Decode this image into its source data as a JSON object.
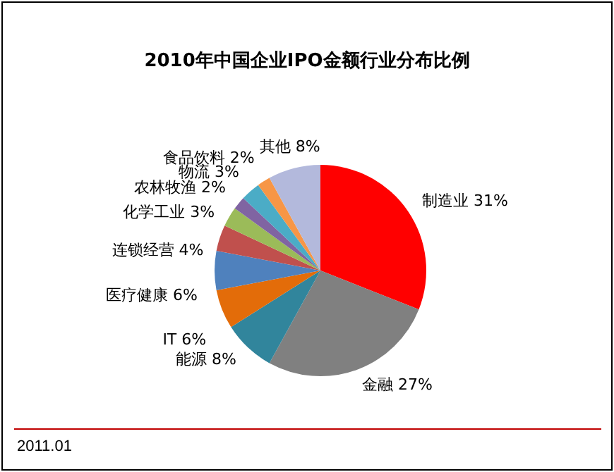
{
  "chart_data": {
    "type": "pie",
    "title": "2010年中国企业IPO金额行业分布比例",
    "categories": [
      "制造业",
      "金融",
      "能源",
      "IT",
      "医疗健康",
      "连锁经营",
      "化学工业",
      "农林牧渔",
      "物流",
      "食品饮料",
      "其他"
    ],
    "values": [
      31,
      27,
      8,
      6,
      6,
      4,
      3,
      2,
      3,
      2,
      8
    ],
    "value_labels": [
      "31%",
      "27%",
      "8%",
      "6%",
      "6%",
      "4%",
      "3%",
      "2%",
      "3%",
      "2%",
      "8%"
    ],
    "colors": [
      "#ff0000",
      "#808080",
      "#31859c",
      "#e36c09",
      "#4f81bd",
      "#c0504d",
      "#9bbb59",
      "#8064a2",
      "#4bacc6",
      "#f79646",
      "#b3b9dc"
    ],
    "legend": false,
    "annotations": [
      "2011.01"
    ]
  }
}
